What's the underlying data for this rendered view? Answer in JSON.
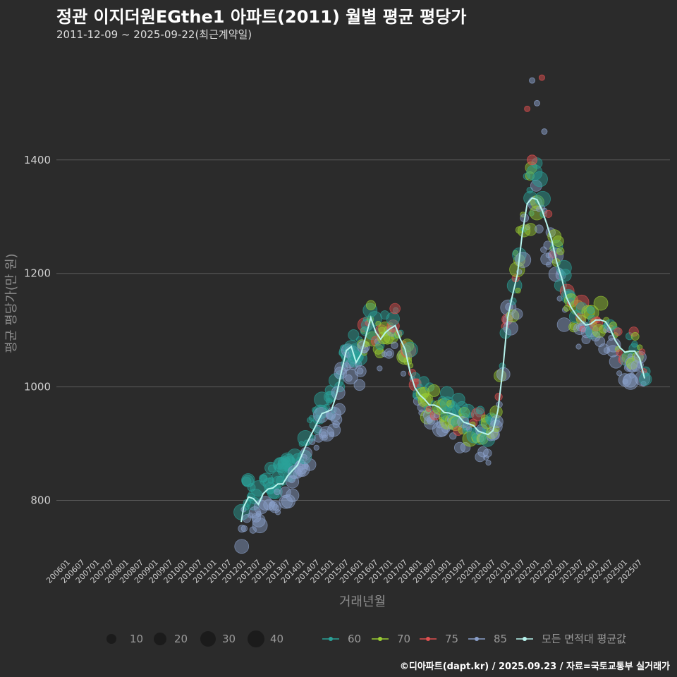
{
  "header": {
    "title": "정관 이지더원EGthe1 아파트(2011) 월별 평균 평당가",
    "subtitle": "2011-12-09 ~ 2025-09-22(최근계약일)"
  },
  "footer": {
    "credit": "©디아파트(dapt.kr) / 2025.09.23 / 자료=국토교통부 실거래가"
  },
  "chart_data": {
    "type": "scatter",
    "title": "정관 이지더원EGthe1 아파트(2011) 월별 평균 평당가",
    "xlabel": "거래년월",
    "ylabel": "평균 평당가(만 원)",
    "ylim": [
      700,
      1570
    ],
    "yticks": [
      800,
      1000,
      1200,
      1400
    ],
    "x_range": [
      "2006-01",
      "2025-09"
    ],
    "xtick_labels": [
      "200601",
      "200607",
      "200701",
      "200707",
      "200801",
      "200807",
      "200901",
      "200907",
      "201001",
      "201007",
      "201101",
      "201107",
      "201201",
      "201207",
      "201301",
      "201307",
      "201401",
      "201407",
      "201501",
      "201507",
      "201601",
      "201607",
      "201701",
      "201707",
      "201801",
      "201807",
      "201901",
      "201907",
      "202001",
      "202007",
      "202101",
      "202107",
      "202201",
      "202207",
      "202301",
      "202307",
      "202401",
      "202407",
      "202501",
      "202507"
    ],
    "legend_size": {
      "values": [
        10,
        20,
        30,
        40
      ],
      "labels": [
        "10",
        "20",
        "30",
        "40"
      ]
    },
    "legend_series": [
      {
        "name": "60",
        "color": "#2aa198"
      },
      {
        "name": "70",
        "color": "#9acd32"
      },
      {
        "name": "75",
        "color": "#e05050"
      },
      {
        "name": "85",
        "color": "#8a9fc9"
      },
      {
        "name": "모든 면적대 평균값",
        "color": "#b8f4ee"
      }
    ],
    "average_line": {
      "name": "모든 면적대 평균값",
      "x": [
        "2011-12",
        "2012-01",
        "2012-03",
        "2012-05",
        "2012-07",
        "2012-09",
        "2012-11",
        "2013-01",
        "2013-03",
        "2013-05",
        "2013-07",
        "2013-09",
        "2013-11",
        "2014-01",
        "2014-03",
        "2014-05",
        "2014-07",
        "2014-09",
        "2014-11",
        "2015-01",
        "2015-03",
        "2015-05",
        "2015-07",
        "2015-09",
        "2015-11",
        "2016-01",
        "2016-03",
        "2016-05",
        "2016-07",
        "2016-09",
        "2016-11",
        "2017-01",
        "2017-03",
        "2017-05",
        "2017-07",
        "2017-09",
        "2017-11",
        "2018-01",
        "2018-03",
        "2018-05",
        "2018-07",
        "2018-09",
        "2018-11",
        "2019-01",
        "2019-03",
        "2019-05",
        "2019-07",
        "2019-09",
        "2019-11",
        "2020-01",
        "2020-03",
        "2020-05",
        "2020-07",
        "2020-09",
        "2020-11",
        "2021-01",
        "2021-03",
        "2021-05",
        "2021-07",
        "2021-09",
        "2021-11",
        "2022-01",
        "2022-03",
        "2022-05",
        "2022-07",
        "2022-09",
        "2022-11",
        "2023-01",
        "2023-03",
        "2023-05",
        "2023-07",
        "2023-09",
        "2023-11",
        "2024-01",
        "2024-03",
        "2024-05",
        "2024-07",
        "2024-09",
        "2024-11",
        "2025-01",
        "2025-03",
        "2025-05",
        "2025-07",
        "2025-09"
      ],
      "values": [
        762,
        790,
        805,
        800,
        795,
        812,
        818,
        825,
        830,
        828,
        840,
        855,
        862,
        880,
        905,
        920,
        935,
        950,
        958,
        960,
        985,
        1030,
        1065,
        1070,
        1040,
        1060,
        1090,
        1120,
        1100,
        1085,
        1095,
        1100,
        1110,
        1085,
        1065,
        1030,
        1000,
        985,
        975,
        970,
        968,
        962,
        958,
        955,
        950,
        945,
        940,
        935,
        930,
        925,
        920,
        915,
        920,
        960,
        1030,
        1120,
        1165,
        1200,
        1270,
        1320,
        1335,
        1330,
        1310,
        1290,
        1260,
        1220,
        1190,
        1160,
        1140,
        1125,
        1120,
        1110,
        1110,
        1115,
        1120,
        1115,
        1100,
        1085,
        1070,
        1060,
        1060,
        1065,
        1050,
        1015
      ]
    },
    "points_note": "Transaction points by area series (60/70/75/85), bubble size = transaction count; approximate values generated in script."
  }
}
